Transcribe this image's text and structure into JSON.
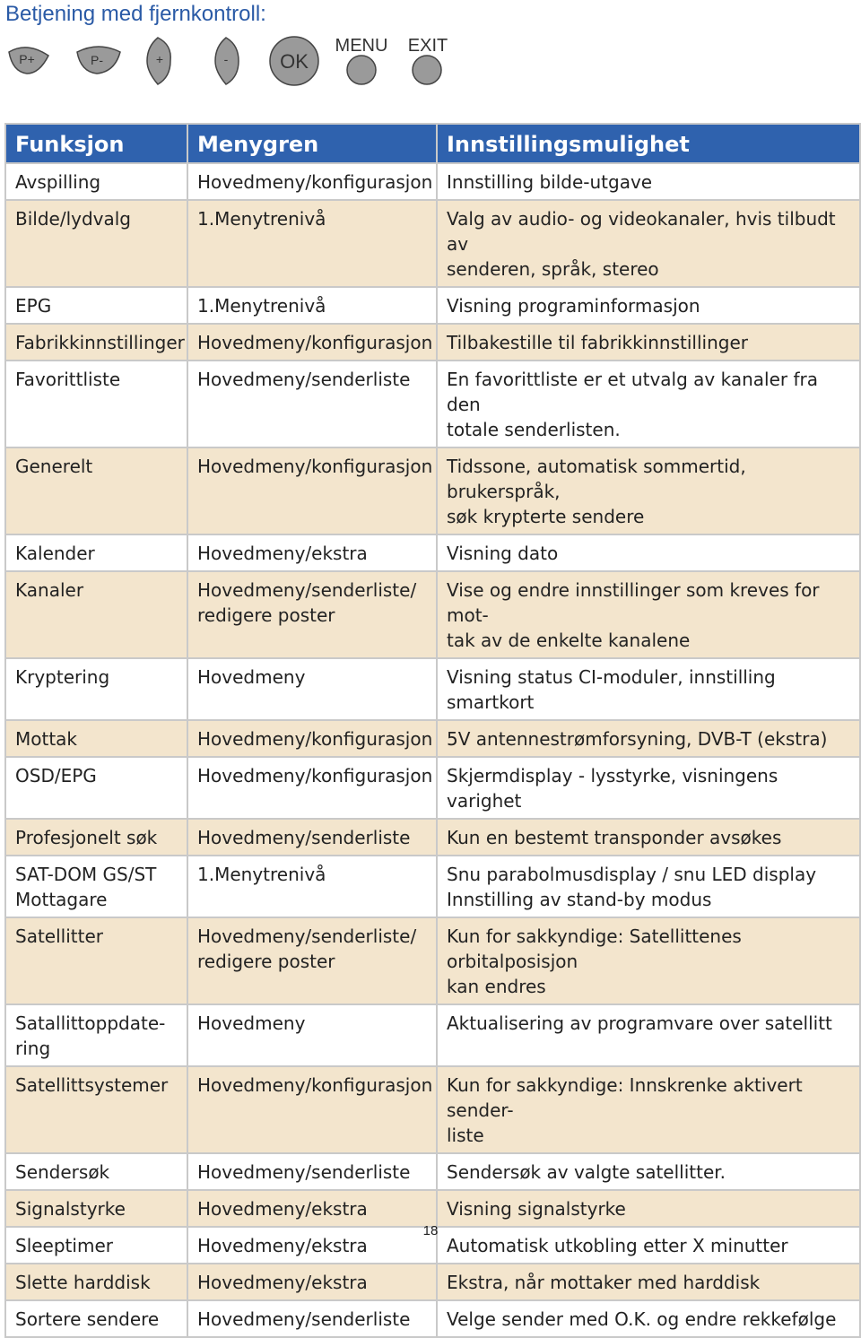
{
  "header": {
    "title": "Betjening med fjernkontroll:"
  },
  "buttons": [
    "P+",
    "P-",
    "+",
    "-",
    "OK",
    "MENU",
    "EXIT"
  ],
  "table": {
    "columns": [
      "Funksjon",
      "Menygren",
      "Innstillingsmulighet"
    ],
    "rows": [
      [
        "Avspilling",
        "Hovedmeny/konfigurasjon",
        "Innstilling bilde-utgave"
      ],
      [
        "Bilde/lydvalg",
        "1.Menytrenivå",
        "Valg av audio- og videokanaler, hvis tilbudt av\nsenderen, språk, stereo"
      ],
      [
        "EPG",
        "1.Menytrenivå",
        "Visning programinformasjon"
      ],
      [
        "Fabrikkinnstillinger",
        "Hovedmeny/konfigurasjon",
        "Tilbakestille til fabrikkinnstillinger"
      ],
      [
        "Favorittliste",
        "Hovedmeny/senderliste",
        "En favorittliste er et utvalg av kanaler fra den\ntotale senderlisten."
      ],
      [
        "Generelt",
        "Hovedmeny/konfigurasjon",
        "Tidssone, automatisk sommertid, brukerspråk,\nsøk krypterte sendere"
      ],
      [
        "Kalender",
        "Hovedmeny/ekstra",
        "Visning dato"
      ],
      [
        "Kanaler",
        "Hovedmeny/senderliste/\nredigere poster",
        "Vise og endre innstillinger som kreves for mot-\ntak av de enkelte kanalene"
      ],
      [
        "Kryptering",
        "Hovedmeny",
        "Visning status CI-moduler, innstilling smartkort"
      ],
      [
        "Mottak",
        "Hovedmeny/konfigurasjon",
        "5V antennestrømforsyning, DVB-T (ekstra)"
      ],
      [
        "OSD/EPG",
        "Hovedmeny/konfigurasjon",
        "Skjermdisplay - lysstyrke, visningens varighet"
      ],
      [
        "Profesjonelt søk",
        "Hovedmeny/senderliste",
        "Kun en bestemt transponder avsøkes"
      ],
      [
        "SAT-DOM GS/ST\nMottagare",
        "1.Menytrenivå",
        "Snu parabolmusdisplay / snu LED display\nInnstilling av stand-by modus"
      ],
      [
        "Satellitter",
        "Hovedmeny/senderliste/\nredigere poster",
        "Kun for sakkyndige: Satellittenes orbitalposisjon\nkan endres"
      ],
      [
        "Satallittoppdate-\nring",
        "Hovedmeny",
        "Aktualisering av programvare over satellitt"
      ],
      [
        "Satellittsystemer",
        "Hovedmeny/konfigurasjon",
        "Kun for sakkyndige: Innskrenke aktivert sender-\nliste"
      ],
      [
        "Sendersøk",
        "Hovedmeny/senderliste",
        "Sendersøk av valgte satellitter."
      ],
      [
        "Signalstyrke",
        "Hovedmeny/ekstra",
        "Visning signalstyrke"
      ],
      [
        "Sleeptimer",
        "Hovedmeny/ekstra",
        "Automatisk utkobling etter X minutter"
      ],
      [
        "Slette harddisk",
        "Hovedmeny/ekstra",
        "Ekstra, når mottaker med harddisk"
      ],
      [
        "Sortere sendere",
        "Hovedmeny/senderliste",
        "Velge sender med O.K. og endre rekkefølge"
      ]
    ]
  },
  "footer": {
    "page_number": "18"
  }
}
